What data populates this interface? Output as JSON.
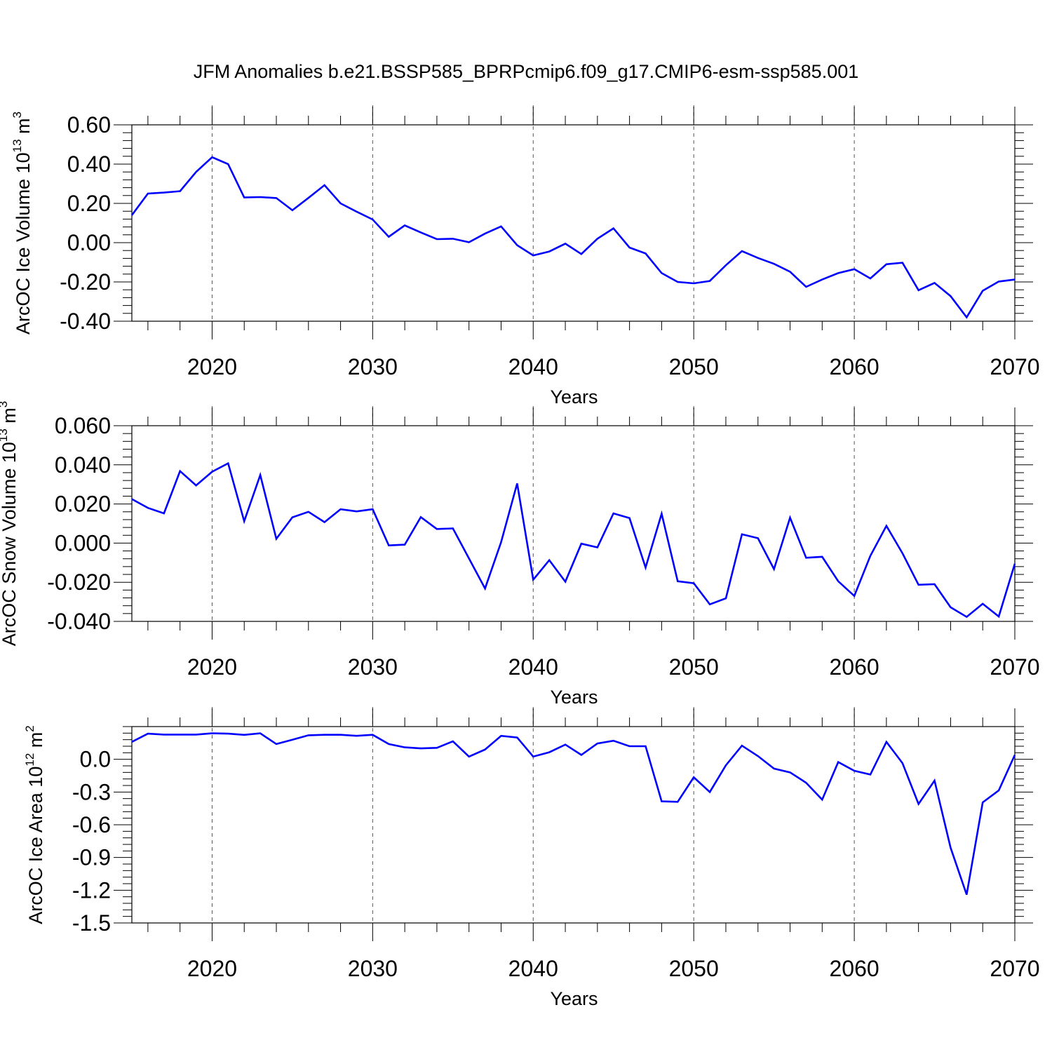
{
  "title": "JFM Anomalies b.e21.BSSP585_BPRPcmip6.f09_g17.CMIP6-esm-ssp585.001",
  "colors": {
    "line": "#0000ff",
    "axis": "#000000",
    "grid": "#555555"
  },
  "chart_data": [
    {
      "type": "line",
      "ylabel": {
        "text": "ArcOC Ice Volume 10",
        "sup": "13",
        "unit": " m",
        "unit_sup": "3"
      },
      "xlabel": "Years",
      "xlim": [
        2015,
        2070
      ],
      "ylim": [
        -0.4,
        0.6
      ],
      "yticks": [
        0.6,
        0.4,
        0.2,
        0.0,
        -0.2,
        -0.4
      ],
      "ytick_labels": [
        "0.60",
        "0.40",
        "0.20",
        "0.00",
        "-0.20",
        "-0.40"
      ],
      "xticks": [
        2020,
        2030,
        2040,
        2050,
        2060,
        2070
      ],
      "xtick_labels": [
        "2020",
        "2030",
        "2040",
        "2050",
        "2060",
        "2070"
      ],
      "grid_x": [
        2020,
        2030,
        2040,
        2050,
        2060
      ],
      "series": [
        {
          "name": "ice_volume",
          "x": [
            2015,
            2016,
            2017,
            2018,
            2019,
            2020,
            2021,
            2022,
            2023,
            2024,
            2025,
            2026,
            2027,
            2028,
            2029,
            2030,
            2031,
            2032,
            2033,
            2034,
            2035,
            2036,
            2037,
            2038,
            2039,
            2040,
            2041,
            2042,
            2043,
            2044,
            2045,
            2046,
            2047,
            2048,
            2049,
            2050,
            2051,
            2052,
            2053,
            2054,
            2055,
            2056,
            2057,
            2058,
            2059,
            2060,
            2061,
            2062,
            2063,
            2064,
            2065,
            2066,
            2067,
            2068,
            2069,
            2070
          ],
          "y": [
            0.14,
            0.25,
            0.255,
            0.262,
            0.36,
            0.435,
            0.4,
            0.23,
            0.232,
            0.227,
            0.165,
            0.228,
            0.293,
            0.2,
            0.158,
            0.118,
            0.03,
            0.088,
            0.052,
            0.018,
            0.02,
            0.002,
            0.046,
            0.083,
            -0.013,
            -0.065,
            -0.045,
            -0.005,
            -0.058,
            0.02,
            0.073,
            -0.025,
            -0.055,
            -0.155,
            -0.2,
            -0.207,
            -0.195,
            -0.115,
            -0.043,
            -0.078,
            -0.108,
            -0.148,
            -0.225,
            -0.188,
            -0.155,
            -0.135,
            -0.182,
            -0.11,
            -0.102,
            -0.242,
            -0.205,
            -0.272,
            -0.38,
            -0.245,
            -0.198,
            -0.188
          ]
        }
      ]
    },
    {
      "type": "line",
      "ylabel": {
        "text": "ArcOC Snow Volume 10",
        "sup": "13",
        "unit": " m",
        "unit_sup": "3"
      },
      "xlabel": "Years",
      "xlim": [
        2015,
        2070
      ],
      "ylim": [
        -0.04,
        0.06
      ],
      "yticks": [
        0.06,
        0.04,
        0.02,
        0.0,
        -0.02,
        -0.04
      ],
      "ytick_labels": [
        "0.060",
        "0.040",
        "0.020",
        "0.000",
        "-0.020",
        "-0.040"
      ],
      "xticks": [
        2020,
        2030,
        2040,
        2050,
        2060,
        2070
      ],
      "xtick_labels": [
        "2020",
        "2030",
        "2040",
        "2050",
        "2060",
        "2070"
      ],
      "grid_x": [
        2020,
        2030,
        2040,
        2050,
        2060
      ],
      "series": [
        {
          "name": "snow_volume",
          "x": [
            2015,
            2016,
            2017,
            2018,
            2019,
            2020,
            2021,
            2022,
            2023,
            2024,
            2025,
            2026,
            2027,
            2028,
            2029,
            2030,
            2031,
            2032,
            2033,
            2034,
            2035,
            2036,
            2037,
            2038,
            2039,
            2040,
            2041,
            2042,
            2043,
            2044,
            2045,
            2046,
            2047,
            2048,
            2049,
            2050,
            2051,
            2052,
            2053,
            2054,
            2055,
            2056,
            2057,
            2058,
            2059,
            2060,
            2061,
            2062,
            2063,
            2064,
            2065,
            2066,
            2067,
            2068,
            2069,
            2070
          ],
          "y": [
            0.0225,
            0.018,
            0.0152,
            0.0368,
            0.0295,
            0.0365,
            0.0408,
            0.0112,
            0.0348,
            0.0022,
            0.0132,
            0.016,
            0.0107,
            0.0173,
            0.0162,
            0.0173,
            -0.0012,
            -0.0008,
            0.0133,
            0.0072,
            0.0075,
            -0.0078,
            -0.0232,
            0.0005,
            0.0305,
            -0.0187,
            -0.0087,
            -0.0197,
            -0.0003,
            -0.0022,
            0.0152,
            0.0128,
            -0.0125,
            0.015,
            -0.0195,
            -0.0205,
            -0.0313,
            -0.0282,
            0.0045,
            0.0025,
            -0.0133,
            0.013,
            -0.0075,
            -0.007,
            -0.0195,
            -0.027,
            -0.0065,
            0.0088,
            -0.0052,
            -0.0213,
            -0.021,
            -0.0328,
            -0.0377,
            -0.031,
            -0.0375,
            -0.0105
          ]
        }
      ]
    },
    {
      "type": "line",
      "ylabel": {
        "text": "ArcOC Ice Area 10",
        "sup": "12",
        "unit": " m",
        "unit_sup": "2"
      },
      "xlabel": "Years",
      "xlim": [
        2015,
        2070
      ],
      "ylim": [
        -1.5,
        0.3
      ],
      "yticks": [
        0.0,
        -0.3,
        -0.6,
        -0.9,
        -1.2,
        -1.5
      ],
      "ytick_labels": [
        "0.0",
        "-0.3",
        "-0.6",
        "-0.9",
        "-1.2",
        "-1.5"
      ],
      "xticks": [
        2020,
        2030,
        2040,
        2050,
        2060,
        2070
      ],
      "xtick_labels": [
        "2020",
        "2030",
        "2040",
        "2050",
        "2060",
        "2070"
      ],
      "grid_x": [
        2020,
        2030,
        2040,
        2050,
        2060
      ],
      "series": [
        {
          "name": "ice_area",
          "x": [
            2015,
            2016,
            2017,
            2018,
            2019,
            2020,
            2021,
            2022,
            2023,
            2024,
            2025,
            2026,
            2027,
            2028,
            2029,
            2030,
            2031,
            2032,
            2033,
            2034,
            2035,
            2036,
            2037,
            2038,
            2039,
            2040,
            2041,
            2042,
            2043,
            2044,
            2045,
            2046,
            2047,
            2048,
            2049,
            2050,
            2051,
            2052,
            2053,
            2054,
            2055,
            2056,
            2057,
            2058,
            2059,
            2060,
            2061,
            2062,
            2063,
            2064,
            2065,
            2066,
            2067,
            2068,
            2069,
            2070
          ],
          "y": [
            0.16,
            0.235,
            0.227,
            0.227,
            0.227,
            0.238,
            0.235,
            0.224,
            0.238,
            0.14,
            0.18,
            0.22,
            0.225,
            0.225,
            0.215,
            0.225,
            0.14,
            0.11,
            0.1,
            0.105,
            0.165,
            0.025,
            0.09,
            0.215,
            0.2,
            0.025,
            0.065,
            0.135,
            0.04,
            0.145,
            0.17,
            0.12,
            0.12,
            -0.385,
            -0.39,
            -0.165,
            -0.3,
            -0.055,
            0.125,
            0.03,
            -0.085,
            -0.12,
            -0.215,
            -0.37,
            -0.025,
            -0.105,
            -0.14,
            0.16,
            -0.035,
            -0.41,
            -0.195,
            -0.81,
            -1.24,
            -0.395,
            -0.285,
            0.04
          ]
        }
      ]
    }
  ]
}
